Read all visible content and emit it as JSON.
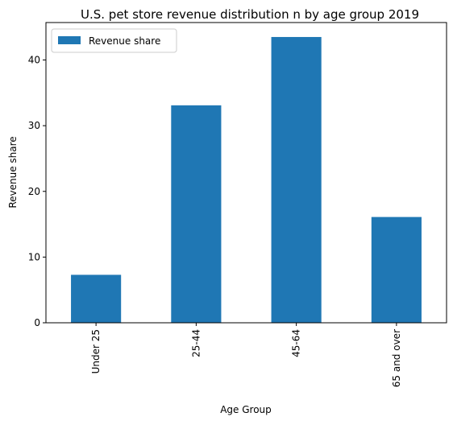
{
  "chart_data": {
    "type": "bar",
    "title": "U.S. pet store revenue distribution n by age group 2019",
    "xlabel": "Age Group",
    "ylabel": "Revenue share",
    "categories": [
      "Under 25",
      "25-44",
      "45-64",
      "65 and over"
    ],
    "series": [
      {
        "name": "Revenue share",
        "values": [
          7.3,
          33.1,
          43.5,
          16.1
        ],
        "color": "#1f77b4"
      }
    ],
    "ylim": [
      0,
      45.7
    ],
    "yticks": [
      0,
      10,
      20,
      30,
      40
    ],
    "grid": false,
    "legend_position": "top-left"
  }
}
